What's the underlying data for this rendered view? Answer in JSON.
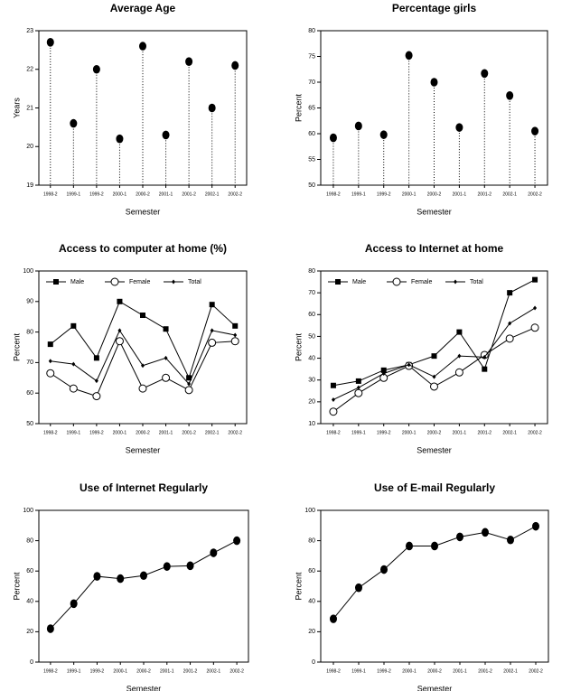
{
  "chart_data": [
    {
      "type": "lollipop",
      "title": "Average Age",
      "x_label": "Semester",
      "y_label": "Years",
      "categories": [
        "1998-2",
        "1999-1",
        "1999-2",
        "2000-1",
        "2000-2",
        "2001-1",
        "2001-2",
        "2002-1",
        "2002-2"
      ],
      "values": [
        22.7,
        20.6,
        22.0,
        20.2,
        22.6,
        20.3,
        22.2,
        21.0,
        22.1
      ],
      "color": "#000000",
      "marker": "dot",
      "ylim": [
        19,
        23
      ],
      "yticks": [
        19,
        20,
        21,
        22,
        23
      ]
    },
    {
      "type": "lollipop",
      "title": "Percentage girls",
      "x_label": "Semester",
      "y_label": "Percent",
      "categories": [
        "1998-2",
        "1999-1",
        "1999-2",
        "2000-1",
        "2000-2",
        "2001-1",
        "2001-2",
        "2002-1",
        "2002-2"
      ],
      "values": [
        59.2,
        61.5,
        59.8,
        75.2,
        70.0,
        61.2,
        71.7,
        67.4,
        60.5
      ],
      "color": "#000000",
      "marker": "dot",
      "ylim": [
        50,
        80
      ],
      "yticks": [
        50,
        55,
        60,
        65,
        70,
        75,
        80
      ]
    },
    {
      "type": "line",
      "title": "Access to computer at home (%)",
      "x_label": "Semester",
      "y_label": "Percent",
      "categories": [
        "1998-2",
        "1999-1",
        "1999-2",
        "2000-1",
        "2000-2",
        "2001-1",
        "2001-2",
        "2002-1",
        "2002-2"
      ],
      "series": [
        {
          "name": "Male",
          "color": "#000000",
          "marker": "square",
          "values": [
            76,
            82,
            71.5,
            90,
            85.5,
            81,
            65,
            89,
            82
          ]
        },
        {
          "name": "Female",
          "color": "#000000",
          "marker": "circle-open",
          "values": [
            66.5,
            61.5,
            59,
            77,
            61.5,
            65,
            61,
            76.5,
            77
          ]
        },
        {
          "name": "Total",
          "color": "#000000",
          "marker": "diamond",
          "values": [
            70.5,
            69.5,
            64,
            80.5,
            69,
            71.5,
            63,
            80.5,
            79
          ]
        }
      ],
      "legend": "top",
      "ylim": [
        50,
        100
      ],
      "yticks": [
        50,
        60,
        70,
        80,
        90,
        100
      ]
    },
    {
      "type": "line",
      "title": "Access to Internet at home",
      "x_label": "Semester",
      "y_label": "Percent",
      "categories": [
        "1998-2",
        "1999-1",
        "1999-2",
        "2000-1",
        "2000-2",
        "2001-1",
        "2001-2",
        "2002-1",
        "2002-2"
      ],
      "series": [
        {
          "name": "Male",
          "color": "#000000",
          "marker": "square",
          "values": [
            27.5,
            29.5,
            34.5,
            37,
            41,
            52,
            35,
            70,
            76
          ]
        },
        {
          "name": "Female",
          "color": "#000000",
          "marker": "circle-open",
          "values": [
            15.5,
            24,
            31,
            36.5,
            27,
            33.5,
            41.5,
            49,
            54
          ]
        },
        {
          "name": "Total",
          "color": "#000000",
          "marker": "diamond",
          "values": [
            21,
            26.5,
            33,
            37,
            31.5,
            41,
            40.5,
            56,
            63
          ]
        }
      ],
      "legend": "top",
      "ylim": [
        10,
        80
      ],
      "yticks": [
        10,
        20,
        30,
        40,
        50,
        60,
        70,
        80
      ]
    },
    {
      "type": "line",
      "title": "Use of Internet Regularly",
      "x_label": "Semester",
      "y_label": "Percent",
      "categories": [
        "1998-2",
        "1999-1",
        "1999-2",
        "2000-1",
        "2000-2",
        "2001-1",
        "2001-2",
        "2002-1",
        "2002-2"
      ],
      "values": [
        22,
        38.5,
        56.5,
        55,
        57,
        63,
        63.5,
        72,
        80
      ],
      "color": "#000000",
      "marker": "dot",
      "ylim": [
        0,
        100
      ],
      "yticks": [
        0,
        20,
        40,
        60,
        80,
        100
      ]
    },
    {
      "type": "line",
      "title": "Use of E-mail Regularly",
      "x_label": "Semester",
      "y_label": "Percent",
      "categories": [
        "1998-2",
        "1999-1",
        "1999-2",
        "2000-1",
        "2000-2",
        "2001-1",
        "2001-2",
        "2002-1",
        "2002-2"
      ],
      "values": [
        28.5,
        49,
        61,
        76.5,
        76.5,
        82.5,
        85.5,
        80.5,
        89.5
      ],
      "color": "#000000",
      "marker": "dot",
      "ylim": [
        0,
        100
      ],
      "yticks": [
        0,
        20,
        40,
        60,
        80,
        100
      ]
    }
  ]
}
